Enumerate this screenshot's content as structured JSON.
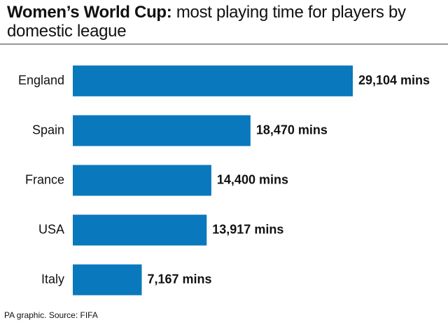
{
  "chart_data": {
    "type": "bar",
    "orientation": "horizontal",
    "title": "Women’s World Cup:",
    "subtitle": "most playing time for players by domestic league",
    "categories": [
      "England",
      "Spain",
      "France",
      "USA",
      "Italy"
    ],
    "values": [
      29104,
      18470,
      14400,
      13917,
      7167
    ],
    "value_labels": [
      "29,104 mins",
      "18,470 mins",
      "14,400 mins",
      "13,917 mins",
      "7,167 mins"
    ],
    "color": "#0a78bd",
    "source": "PA graphic. Source: FIFA"
  }
}
